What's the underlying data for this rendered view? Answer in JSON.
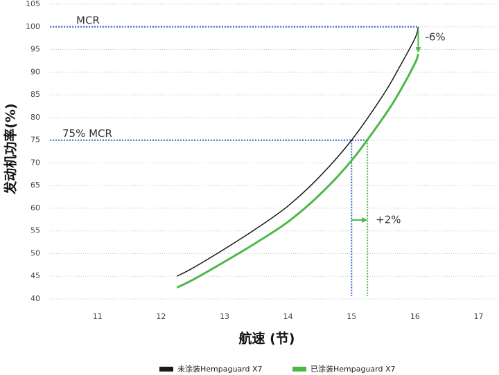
{
  "chart_data": {
    "type": "line",
    "x_label": "航速 (节)",
    "y_label": "发动机功率(%)",
    "x": [
      12.25,
      12.5,
      13,
      13.5,
      14,
      14.5,
      15,
      15.5,
      15.75,
      16,
      16.05
    ],
    "series": [
      {
        "name": "未涂装Hempaguard X7",
        "color": "#1a1a1a",
        "values": [
          45,
          46.8,
          51,
          55.5,
          60.5,
          67,
          75,
          85,
          91,
          97.5,
          100
        ]
      },
      {
        "name": "已涂装Hempaguard X7",
        "color": "#4db848",
        "values": [
          42.5,
          44.2,
          48.2,
          52.4,
          57,
          63,
          70.5,
          80,
          85.5,
          92,
          94
        ]
      }
    ],
    "xlim": [
      10.25,
      17.3
    ],
    "xticks": [
      11,
      12,
      13,
      14,
      15,
      16,
      17
    ],
    "ylim": [
      40,
      105
    ],
    "yticks": [
      40,
      45,
      50,
      55,
      60,
      65,
      70,
      75,
      80,
      85,
      90,
      95,
      100,
      105
    ],
    "grid": true,
    "reference_lines": [
      {
        "label": "MCR",
        "value": 100
      },
      {
        "label": "75% MCR",
        "value": 75
      }
    ],
    "speed_markers": [
      {
        "value": 15,
        "color": "#3a5fcd"
      },
      {
        "value": 15.25,
        "color": "#4db848"
      }
    ],
    "reference_color": "#3a5fcd",
    "annotations": [
      "-6%",
      "+2%"
    ]
  }
}
